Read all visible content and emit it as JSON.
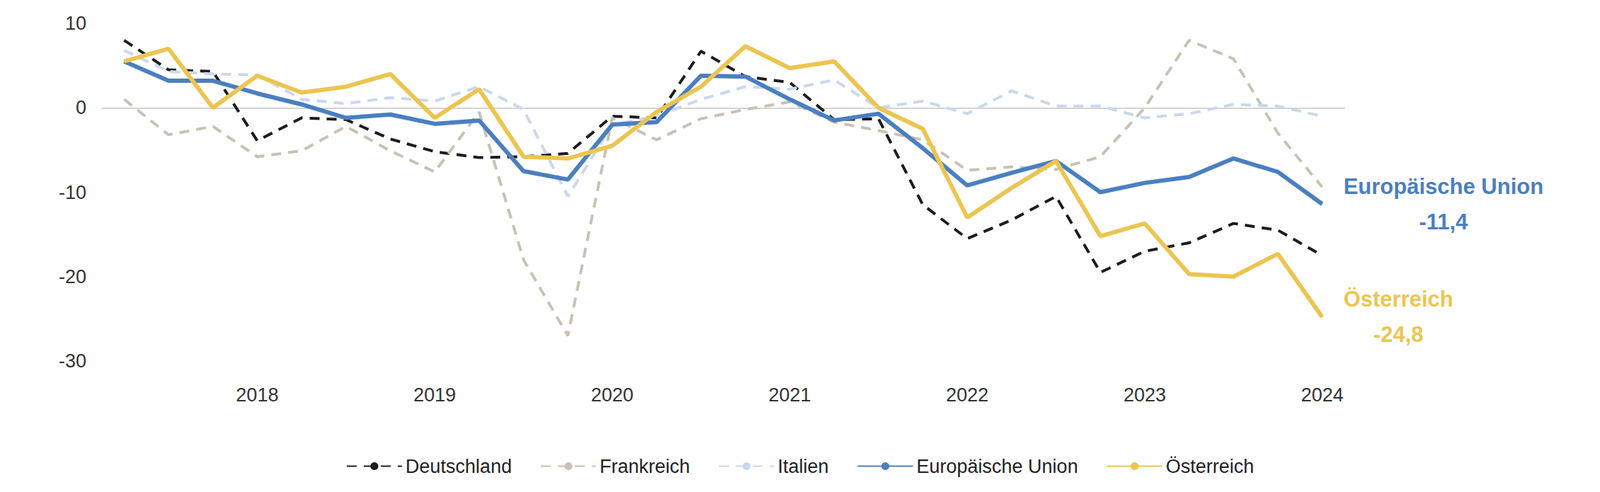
{
  "chart_data": {
    "type": "line",
    "categories": [
      null,
      null,
      null,
      "2018",
      null,
      null,
      null,
      "2019",
      null,
      null,
      null,
      "2020",
      null,
      null,
      null,
      "2021",
      null,
      null,
      null,
      "2022",
      null,
      null,
      null,
      "2023",
      null,
      null,
      null,
      "2024"
    ],
    "series": [
      {
        "name": "Deutschland",
        "color": "#1c1c1c",
        "line_style": "dashed",
        "values": [
          8,
          4.5,
          4.3,
          -3.9,
          -1.2,
          -1.4,
          -3.7,
          -5.2,
          -5.9,
          -5.8,
          -5.4,
          -1,
          -1.2,
          6.7,
          3.7,
          3,
          -1.4,
          -1.3,
          -11.5,
          -15.5,
          -13.3,
          -10.5,
          -19.5,
          -17,
          -16,
          -13.7,
          -14.5,
          -17.5
        ]
      },
      {
        "name": "Frankreich",
        "color": "#c8c2b4",
        "line_style": "dashed",
        "values": [
          1,
          -3.2,
          -2.2,
          -5.8,
          -5.1,
          -2.2,
          -5.1,
          -7.6,
          -0.5,
          -18,
          -27,
          -1.2,
          -3.8,
          -1.3,
          -0.2,
          0.7,
          -1.7,
          -2.7,
          -3.8,
          -7.4,
          -7,
          -7.3,
          -5.8,
          0,
          8,
          5.8,
          -3,
          -9.4
        ]
      },
      {
        "name": "Italien",
        "color": "#c9d8ec",
        "line_style": "dashed",
        "values": [
          6.8,
          4.3,
          4,
          3.9,
          1,
          0.5,
          1.2,
          0.8,
          2.5,
          -0.2,
          -10.5,
          -2,
          -1,
          1,
          2.5,
          2.2,
          3.3,
          0,
          0.8,
          -0.7,
          2,
          0.2,
          0.2,
          -1.2,
          -0.7,
          0.4,
          0.2,
          -1
        ]
      },
      {
        "name": "Europäische Union",
        "color": "#4a7fc1",
        "line_style": "solid",
        "values": [
          5.5,
          3.2,
          3.2,
          1.7,
          0.4,
          -1.2,
          -0.8,
          -1.9,
          -1.5,
          -7.5,
          -8.5,
          -2,
          -1.7,
          3.8,
          3.7,
          1,
          -1.5,
          -0.7,
          -4.8,
          -9.2,
          -7.7,
          -6.3,
          -10,
          -8.9,
          -8.2,
          -6,
          -7.6,
          -11.4
        ]
      },
      {
        "name": "Österreich",
        "color": "#ecc550",
        "line_style": "solid",
        "values": [
          5.5,
          7,
          0,
          3.8,
          1.8,
          2.5,
          4,
          -1.2,
          2.2,
          -5.8,
          -6,
          -4.5,
          -0.5,
          2.5,
          7.3,
          4.7,
          5.5,
          0,
          -2.5,
          -13,
          -9.5,
          -6.3,
          -15.2,
          -13.7,
          -19.7,
          -20,
          -17.3,
          -24.8
        ]
      }
    ],
    "ylim": [
      -30,
      10
    ],
    "yticks": [
      -30,
      -20,
      -10,
      0,
      10
    ],
    "grid": false,
    "legend": "bottom",
    "annotations": [
      {
        "series": "Europäische Union",
        "lines": [
          "Europäische Union",
          "-11,4"
        ]
      },
      {
        "series": "Österreich",
        "lines": [
          "Österreich",
          "-24,8"
        ]
      }
    ]
  }
}
